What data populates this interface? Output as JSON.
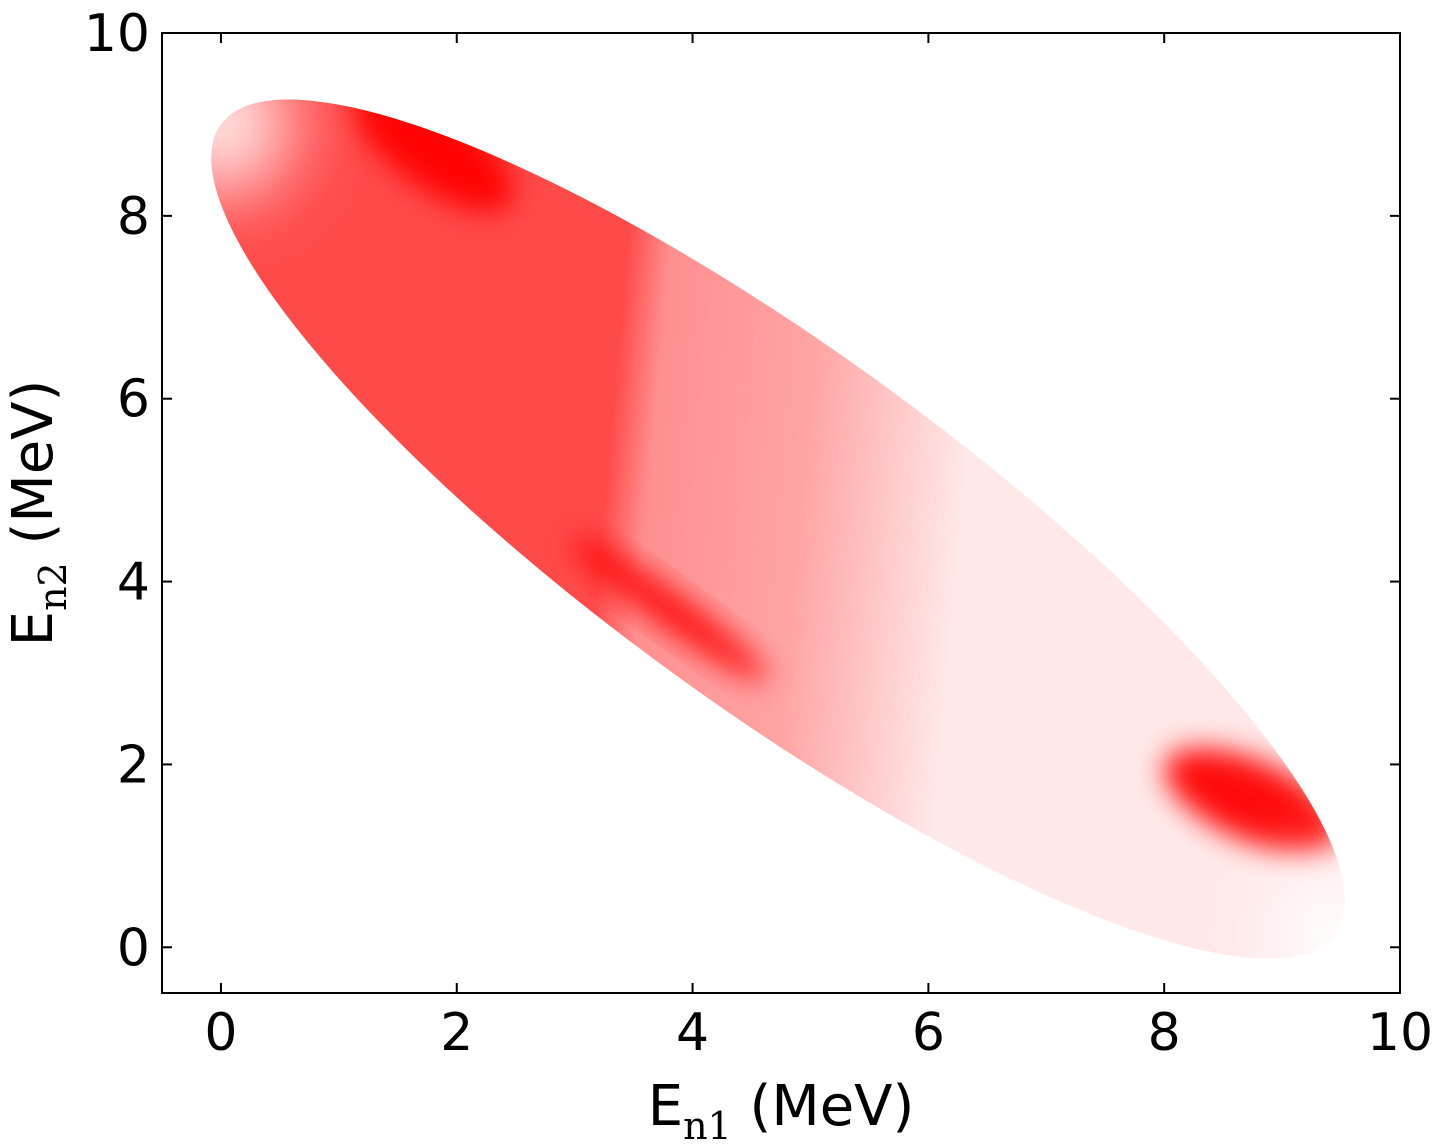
{
  "chart_data": {
    "type": "heatmap",
    "title": "",
    "xlabel": {
      "main": "E",
      "sub": "n1",
      "unit": " (MeV)"
    },
    "ylabel": {
      "main": "E",
      "sub": "n2",
      "unit": " (MeV)"
    },
    "xlim": [
      -0.5,
      10
    ],
    "ylim": [
      -0.5,
      10
    ],
    "xticks": [
      0,
      2,
      4,
      6,
      8,
      10
    ],
    "yticks": [
      0,
      2,
      4,
      6,
      8,
      10
    ],
    "grid": false,
    "colormap": "white-to-red",
    "colors": {
      "high": "#ff0000",
      "low": "#ffffff"
    },
    "region": {
      "shape": "ellipse",
      "center": [
        4.72,
        4.72
      ],
      "major_axis_direction": [
        1,
        -1
      ],
      "major_tips": [
        [
          0.0,
          9.0
        ],
        [
          9.45,
          0.15
        ]
      ],
      "minor_tips": [
        [
          3.4,
          3.7
        ],
        [
          6.0,
          5.7
        ]
      ]
    },
    "intensity_peaks": [
      {
        "x": 1.8,
        "y": 8.75,
        "level": "high"
      },
      {
        "x": 8.75,
        "y": 1.6,
        "level": "high"
      },
      {
        "x": 3.8,
        "y": 3.7,
        "level": "high"
      }
    ]
  }
}
